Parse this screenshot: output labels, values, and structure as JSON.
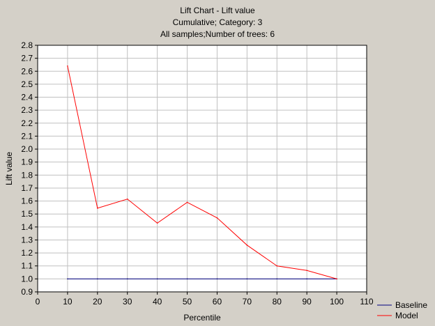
{
  "chart_data": {
    "type": "line",
    "title": "Lift Chart - Lift value",
    "subtitle_1": "Cumulative; Category: 3",
    "subtitle_2": "All samples;Number of trees: 6",
    "xlabel": "Percentile",
    "ylabel": "Lift value",
    "xlim": [
      0,
      110
    ],
    "ylim": [
      0.9,
      2.8
    ],
    "x_ticks": [
      0,
      10,
      20,
      30,
      40,
      50,
      60,
      70,
      80,
      90,
      100,
      110
    ],
    "x_tick_labels": [
      "0",
      "10",
      "20",
      "30",
      "40",
      "50",
      "60",
      "70",
      "80",
      "90",
      "100",
      "110"
    ],
    "y_ticks": [
      0.9,
      1.0,
      1.1,
      1.2,
      1.3,
      1.4,
      1.5,
      1.6,
      1.7,
      1.8,
      1.9,
      2.0,
      2.1,
      2.2,
      2.3,
      2.4,
      2.5,
      2.6,
      2.7,
      2.8
    ],
    "y_tick_labels": [
      "0.9",
      "1.0",
      "1.1",
      "1.2",
      "1.3",
      "1.4",
      "1.5",
      "1.6",
      "1.7",
      "1.8",
      "1.9",
      "2.0",
      "2.1",
      "2.2",
      "2.3",
      "2.4",
      "2.5",
      "2.6",
      "2.7",
      "2.8"
    ],
    "grid": true,
    "legend_position": "bottom-right",
    "series": [
      {
        "name": "Baseline",
        "color": "#00007f",
        "x": [
          10,
          20,
          30,
          40,
          50,
          60,
          70,
          80,
          90,
          100
        ],
        "values": [
          1.0,
          1.0,
          1.0,
          1.0,
          1.0,
          1.0,
          1.0,
          1.0,
          1.0,
          1.0
        ]
      },
      {
        "name": "Model",
        "color": "#ff0000",
        "x": [
          10,
          20,
          30,
          40,
          50,
          60,
          70,
          80,
          90,
          100
        ],
        "values": [
          2.64,
          1.545,
          1.615,
          1.43,
          1.59,
          1.47,
          1.26,
          1.1,
          1.065,
          1.0
        ]
      }
    ]
  },
  "colors": {
    "background": "#d4d0c8",
    "plot_background": "#ffffff",
    "grid": "#c0c0c0"
  }
}
